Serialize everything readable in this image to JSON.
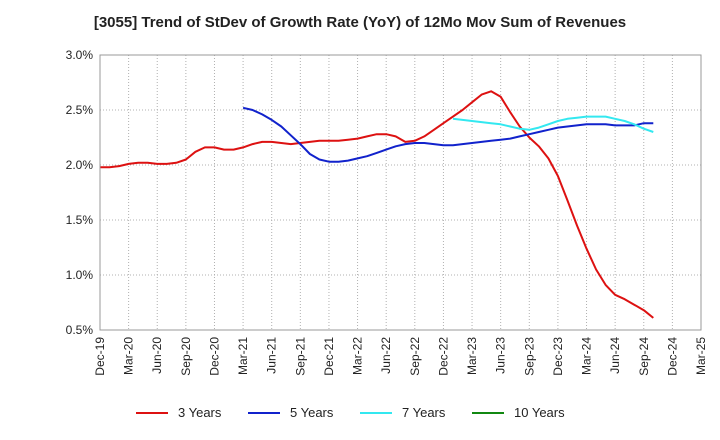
{
  "chart_data": {
    "type": "line",
    "title": "[3055]  Trend of StDev of Growth Rate (YoY) of 12Mo Mov Sum of Revenues",
    "xlabel": "",
    "ylabel": "",
    "ylim": [
      0.005,
      0.03
    ],
    "yticks": [
      "3.0%",
      "2.5%",
      "2.0%",
      "1.5%",
      "1.0%",
      "0.5%"
    ],
    "ytick_values": [
      0.03,
      0.025,
      0.02,
      0.015,
      0.01,
      0.005
    ],
    "xticks": [
      "Dec-19",
      "Mar-20",
      "Jun-20",
      "Sep-20",
      "Dec-20",
      "Mar-21",
      "Jun-21",
      "Sep-21",
      "Dec-21",
      "Mar-22",
      "Jun-22",
      "Sep-22",
      "Dec-22",
      "Mar-23",
      "Jun-23",
      "Sep-23",
      "Dec-23",
      "Mar-24",
      "Jun-24",
      "Sep-24",
      "Dec-24",
      "Mar-25"
    ],
    "grid": true,
    "legend_position": "bottom",
    "series": [
      {
        "name": "3 Years",
        "color": "#dd1111",
        "x": [
          0,
          1,
          2,
          3,
          4,
          5,
          6,
          7,
          8,
          9,
          10,
          11,
          12,
          13,
          14,
          15,
          16,
          17,
          18,
          19,
          20,
          21,
          22,
          23,
          24,
          25,
          26,
          27,
          28,
          29,
          30,
          31,
          32,
          33,
          34,
          35,
          36,
          37,
          38,
          39,
          40,
          41,
          42,
          43,
          44,
          45,
          46,
          47,
          48,
          49,
          50,
          51,
          52,
          53,
          54,
          55,
          56,
          57,
          58,
          59,
          60
        ],
        "values": [
          0.0198,
          0.0198,
          0.0199,
          0.0201,
          0.0202,
          0.0202,
          0.0201,
          0.0201,
          0.0202,
          0.0205,
          0.0212,
          0.0216,
          0.0216,
          0.0214,
          0.0214,
          0.0216,
          0.0219,
          0.0221,
          0.0221,
          0.022,
          0.0219,
          0.022,
          0.0221,
          0.0222,
          0.0222,
          0.0222,
          0.0223,
          0.0224,
          0.0226,
          0.0228,
          0.0228,
          0.0226,
          0.0221,
          0.0222,
          0.0226,
          0.0232,
          0.0238,
          0.0244,
          0.025,
          0.0257,
          0.0264,
          0.0267,
          0.0262,
          0.0248,
          0.0235,
          0.0225,
          0.0217,
          0.0206,
          0.019,
          0.0168,
          0.0145,
          0.0124,
          0.0105,
          0.0091,
          0.0082,
          0.0078,
          0.0073,
          0.0068,
          0.0061,
          null,
          null
        ]
      },
      {
        "name": "5 Years",
        "color": "#1122cc",
        "x": [
          0,
          1,
          2,
          3,
          4,
          5,
          6,
          7,
          8,
          9,
          10,
          11,
          12,
          13,
          14,
          15,
          16,
          17,
          18,
          19,
          20,
          21,
          22,
          23,
          24,
          25,
          26,
          27,
          28,
          29,
          30,
          31,
          32,
          33,
          34,
          35,
          36,
          37,
          38,
          39,
          40,
          41,
          42,
          43,
          44,
          45,
          46,
          47,
          48,
          49,
          50,
          51,
          52,
          53,
          54,
          55,
          56,
          57,
          58,
          59,
          60
        ],
        "values": [
          null,
          null,
          null,
          null,
          null,
          null,
          null,
          null,
          null,
          null,
          null,
          null,
          null,
          null,
          null,
          0.0252,
          0.025,
          0.0246,
          0.0241,
          0.0235,
          0.0227,
          0.0219,
          0.021,
          0.0205,
          0.0203,
          0.0203,
          0.0204,
          0.0206,
          0.0208,
          0.0211,
          0.0214,
          0.0217,
          0.0219,
          0.022,
          0.022,
          0.0219,
          0.0218,
          0.0218,
          0.0219,
          0.022,
          0.0221,
          0.0222,
          0.0223,
          0.0224,
          0.0226,
          0.0228,
          0.023,
          0.0232,
          0.0234,
          0.0235,
          0.0236,
          0.0237,
          0.0237,
          0.0237,
          0.0236,
          0.0236,
          0.0236,
          0.0238,
          0.0238,
          null,
          null
        ]
      },
      {
        "name": "7 Years",
        "color": "#33e8f0",
        "x": [
          0,
          1,
          2,
          3,
          4,
          5,
          6,
          7,
          8,
          9,
          10,
          11,
          12,
          13,
          14,
          15,
          16,
          17,
          18,
          19,
          20,
          21,
          22,
          23,
          24,
          25,
          26,
          27,
          28,
          29,
          30,
          31,
          32,
          33,
          34,
          35,
          36,
          37,
          38,
          39,
          40,
          41,
          42,
          43,
          44,
          45,
          46,
          47,
          48,
          49,
          50,
          51,
          52,
          53,
          54,
          55,
          56,
          57,
          58,
          59,
          60
        ],
        "values": [
          null,
          null,
          null,
          null,
          null,
          null,
          null,
          null,
          null,
          null,
          null,
          null,
          null,
          null,
          null,
          null,
          null,
          null,
          null,
          null,
          null,
          null,
          null,
          null,
          null,
          null,
          null,
          null,
          null,
          null,
          null,
          null,
          null,
          null,
          null,
          null,
          null,
          0.0242,
          0.0241,
          0.024,
          0.0239,
          0.0238,
          0.0237,
          0.0235,
          0.0233,
          0.0232,
          0.0234,
          0.0237,
          0.024,
          0.0242,
          0.0243,
          0.0244,
          0.0244,
          0.0244,
          0.0242,
          0.024,
          0.0237,
          0.0233,
          0.023,
          null,
          null
        ]
      },
      {
        "name": "10 Years",
        "color": "#118811",
        "x": [],
        "values": []
      }
    ]
  }
}
